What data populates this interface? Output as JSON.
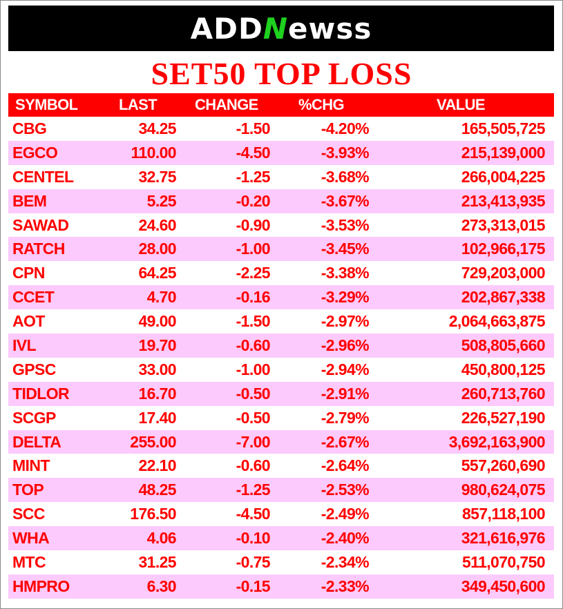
{
  "logo": {
    "text_pre": "ADD",
    "text_n": "N",
    "text_post": "ewss",
    "accent": "#1fd11f"
  },
  "title": "SET50 TOP LOSS",
  "colors": {
    "header_bg": "#ff0000",
    "alt_row": "#fccafc",
    "text": "#ff0000"
  },
  "columns": [
    "SYMBOL",
    "LAST",
    "CHANGE",
    "%CHG",
    "VALUE"
  ],
  "rows": [
    [
      "CBG",
      "34.25",
      "-1.50",
      "-4.20%",
      "165,505,725"
    ],
    [
      "EGCO",
      "110.00",
      "-4.50",
      "-3.93%",
      "215,139,000"
    ],
    [
      "CENTEL",
      "32.75",
      "-1.25",
      "-3.68%",
      "266,004,225"
    ],
    [
      "BEM",
      "5.25",
      "-0.20",
      "-3.67%",
      "213,413,935"
    ],
    [
      "SAWAD",
      "24.60",
      "-0.90",
      "-3.53%",
      "273,313,015"
    ],
    [
      "RATCH",
      "28.00",
      "-1.00",
      "-3.45%",
      "102,966,175"
    ],
    [
      "CPN",
      "64.25",
      "-2.25",
      "-3.38%",
      "729,203,000"
    ],
    [
      "CCET",
      "4.70",
      "-0.16",
      "-3.29%",
      "202,867,338"
    ],
    [
      "AOT",
      "49.00",
      "-1.50",
      "-2.97%",
      "2,064,663,875"
    ],
    [
      "IVL",
      "19.70",
      "-0.60",
      "-2.96%",
      "508,805,660"
    ],
    [
      "GPSC",
      "33.00",
      "-1.00",
      "-2.94%",
      "450,800,125"
    ],
    [
      "TIDLOR",
      "16.70",
      "-0.50",
      "-2.91%",
      "260,713,760"
    ],
    [
      "SCGP",
      "17.40",
      "-0.50",
      "-2.79%",
      "226,527,190"
    ],
    [
      "DELTA",
      "255.00",
      "-7.00",
      "-2.67%",
      "3,692,163,900"
    ],
    [
      "MINT",
      "22.10",
      "-0.60",
      "-2.64%",
      "557,260,690"
    ],
    [
      "TOP",
      "48.25",
      "-1.25",
      "-2.53%",
      "980,624,075"
    ],
    [
      "SCC",
      "176.50",
      "-4.50",
      "-2.49%",
      "857,118,100"
    ],
    [
      "WHA",
      "4.06",
      "-0.10",
      "-2.40%",
      "321,616,976"
    ],
    [
      "MTC",
      "31.25",
      "-0.75",
      "-2.34%",
      "511,070,750"
    ],
    [
      "HMPRO",
      "6.30",
      "-0.15",
      "-2.33%",
      "349,450,600"
    ]
  ]
}
